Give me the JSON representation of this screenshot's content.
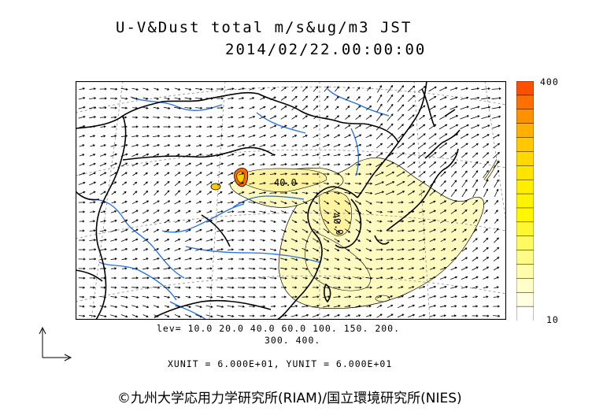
{
  "header": {
    "title_line1": "U-V&Dust total m/s&ug/m3 JST",
    "title_line2": "2014/02/22.00:00:00"
  },
  "colorbar": {
    "max_label": "400",
    "min_label": "10",
    "colors": [
      "#ff5000",
      "#ff7000",
      "#ff9000",
      "#ffb000",
      "#ffc800",
      "#ffd800",
      "#ffe400",
      "#ffee00",
      "#fff200",
      "#fff600",
      "#fff830",
      "#fffa60",
      "#fffb88",
      "#fffcaa",
      "#fffdc8",
      "#fffee0",
      "#ffffff"
    ]
  },
  "footer": {
    "levels_line1": "lev= 10.0 20.0 40.0 60.0 100. 150. 200.",
    "levels_line2": "300. 400.",
    "units": "XUNIT = 6.000E+01, YUNIT = 6.000E+01",
    "copyright": "©九州大学応用力学研究所(RIAM)/国立環境研究所(NIES)"
  },
  "map": {
    "contour_labels": [
      "40.0",
      "40.0"
    ],
    "colors": {
      "dust_light": "#fffbc0",
      "dust_mid": "#fff3a0",
      "dust_core": "#ff6a00",
      "river": "#1f6fe6",
      "coast": "#000000",
      "grid": "#8c8c8c"
    }
  }
}
